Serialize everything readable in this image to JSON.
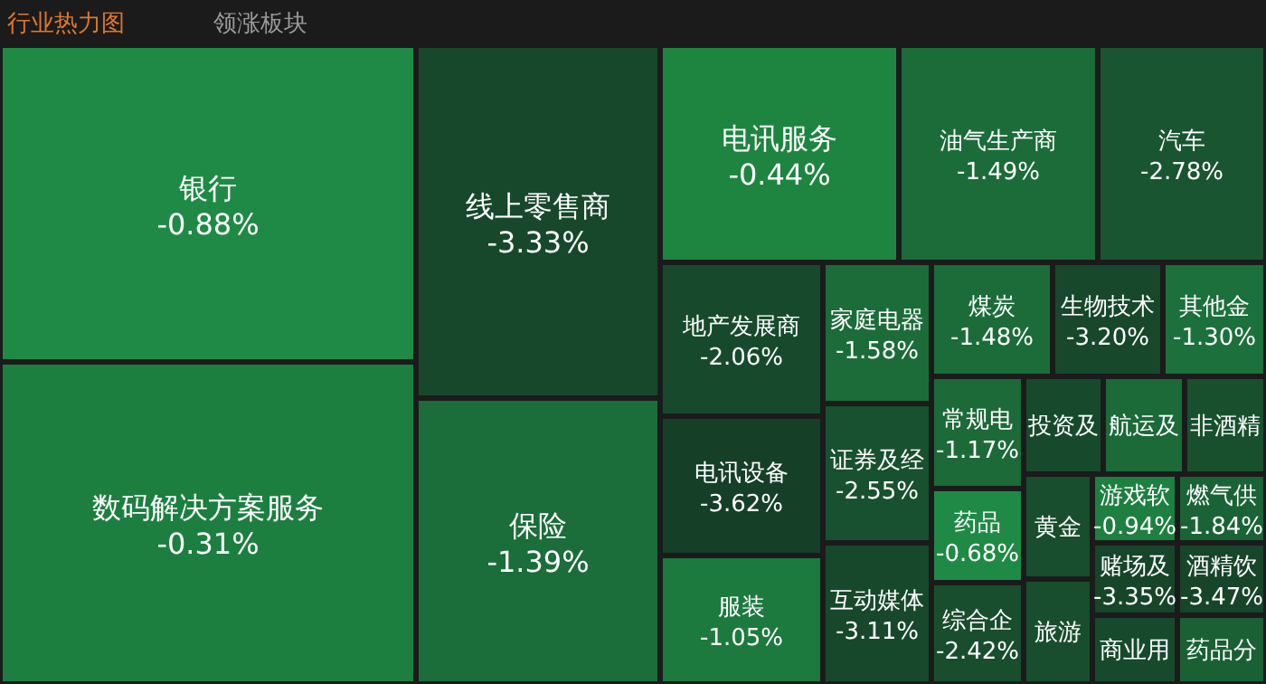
{
  "chart_data": {
    "type": "other",
    "title": "行业热力图",
    "subtitle": "领涨板块",
    "categories": [
      "银行",
      "数码解决方案服务",
      "线上零售商",
      "保险",
      "电讯服务",
      "油气生产商",
      "汽车",
      "地产发展商",
      "电讯设备",
      "服装",
      "家庭电器",
      "证券及经",
      "互动媒体",
      "煤炭",
      "生物技术",
      "其他金",
      "常规电",
      "投资及",
      "航运及",
      "非酒精",
      "药品",
      "综合企",
      "黄金",
      "旅游",
      "游戏软",
      "燃气供",
      "赌场及",
      "酒精饮",
      "商业用",
      "药品分"
    ],
    "values": [
      -0.88,
      -0.31,
      -3.33,
      -1.39,
      -0.44,
      -1.49,
      -2.78,
      -2.06,
      -3.62,
      -1.05,
      -1.58,
      -2.55,
      -3.11,
      -1.48,
      -3.2,
      -1.3,
      -1.17,
      null,
      null,
      null,
      -0.68,
      -2.42,
      null,
      null,
      -0.94,
      -1.84,
      -3.35,
      -3.47,
      null,
      null
    ],
    "value_labels": [
      "-0.88%",
      "-0.31%",
      "-3.33%",
      "-1.39%",
      "-0.44%",
      "-1.49%",
      "-2.78%",
      "-2.06%",
      "-3.62%",
      "-1.05%",
      "-1.58%",
      "-2.55%",
      "-3.11%",
      "-1.48%",
      "-3.20%",
      "-1.30%",
      "-1.17%",
      null,
      null,
      null,
      "-0.68%",
      "-2.42%",
      null,
      null,
      "-0.94%",
      "-1.84%",
      "-3.35%",
      "-3.47%",
      null,
      null
    ],
    "colors": [
      "#1f8a45",
      "#1c7f40",
      "#17482b",
      "#1b6d3a",
      "#1d8540",
      "#1b6c39",
      "#1a5532",
      "#174a2c",
      "#163f27",
      "#1d7a3f",
      "#1c6c3a",
      "#18512f",
      "#17482b",
      "#1b6c39",
      "#17482b",
      "#1c703b",
      "#1c6a38",
      "#174a2c",
      "#1b6a38",
      "#18502e",
      "#1f8a45",
      "#184e2e",
      "#184e2e",
      "#184e2e",
      "#1d8040",
      "#1a6336",
      "#17452a",
      "#17452a",
      "#174a2c",
      "#1a6034"
    ]
  }
}
